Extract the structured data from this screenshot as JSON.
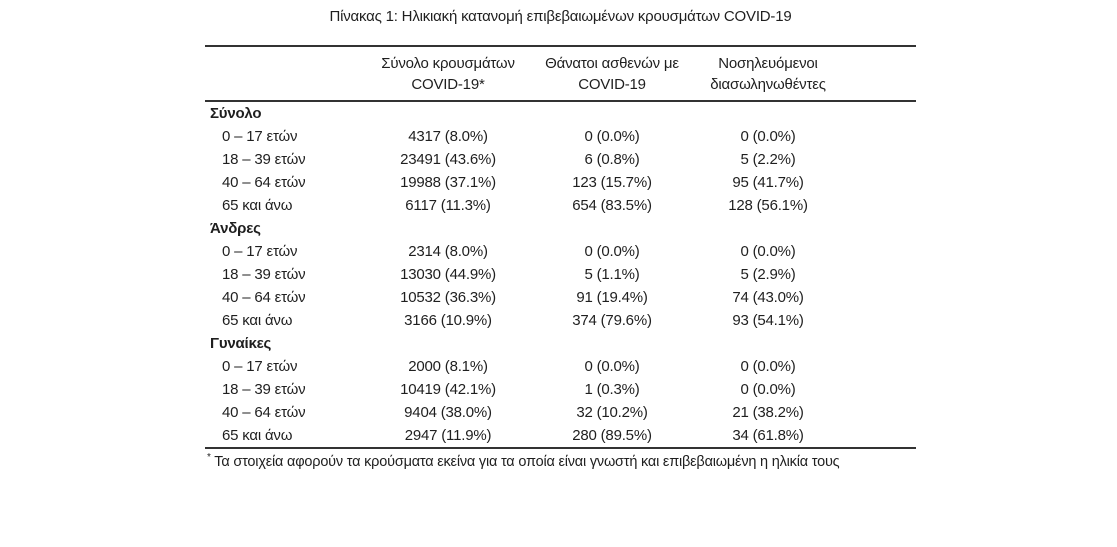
{
  "title": "Πίνακας 1: Ηλικιακή κατανομή επιβεβαιωμένων κρουσμάτων COVID-19",
  "colors": {
    "background": "#ffffff",
    "text": "#1f1f1f",
    "rule": "#333333"
  },
  "table": {
    "headers": [
      {
        "line1": "Σύνολο κρουσμάτων",
        "line2": "COVID-19*"
      },
      {
        "line1": "Θάνατοι ασθενών με",
        "line2": "COVID-19"
      },
      {
        "line1": "Νοσηλευόμενοι",
        "line2": "διασωληνωθέντες"
      }
    ],
    "sections": [
      {
        "label": "Σύνολο",
        "rows": [
          {
            "label": "0 – 17 ετών",
            "values": [
              "4317 (8.0%)",
              "0 (0.0%)",
              "0 (0.0%)"
            ]
          },
          {
            "label": "18 – 39 ετών",
            "values": [
              "23491 (43.6%)",
              "6 (0.8%)",
              "5 (2.2%)"
            ]
          },
          {
            "label": "40 – 64 ετών",
            "values": [
              "19988 (37.1%)",
              "123 (15.7%)",
              "95 (41.7%)"
            ]
          },
          {
            "label": "65 και άνω",
            "values": [
              "6117 (11.3%)",
              "654 (83.5%)",
              "128 (56.1%)"
            ]
          }
        ]
      },
      {
        "label": "Άνδρες",
        "rows": [
          {
            "label": "0 – 17 ετών",
            "values": [
              "2314 (8.0%)",
              "0 (0.0%)",
              "0 (0.0%)"
            ]
          },
          {
            "label": "18 – 39 ετών",
            "values": [
              "13030 (44.9%)",
              "5 (1.1%)",
              "5 (2.9%)"
            ]
          },
          {
            "label": "40 – 64 ετών",
            "values": [
              "10532 (36.3%)",
              "91 (19.4%)",
              "74 (43.0%)"
            ]
          },
          {
            "label": "65 και άνω",
            "values": [
              "3166 (10.9%)",
              "374 (79.6%)",
              "93 (54.1%)"
            ]
          }
        ]
      },
      {
        "label": "Γυναίκες",
        "rows": [
          {
            "label": "0 – 17 ετών",
            "values": [
              "2000 (8.1%)",
              "0 (0.0%)",
              "0 (0.0%)"
            ]
          },
          {
            "label": "18 – 39 ετών",
            "values": [
              "10419 (42.1%)",
              "1 (0.3%)",
              "0 (0.0%)"
            ]
          },
          {
            "label": "40 – 64 ετών",
            "values": [
              "9404 (38.0%)",
              "32 (10.2%)",
              "21 (38.2%)"
            ]
          },
          {
            "label": "65 και άνω",
            "values": [
              "2947 (11.9%)",
              "280 (89.5%)",
              "34 (61.8%)"
            ]
          }
        ]
      }
    ]
  },
  "footnote": {
    "marker": "*",
    "text": "Τα στοιχεία αφορούν τα κρούσματα εκείνα για τα οποία είναι γνωστή και επιβεβαιωμένη η ηλικία τους"
  }
}
